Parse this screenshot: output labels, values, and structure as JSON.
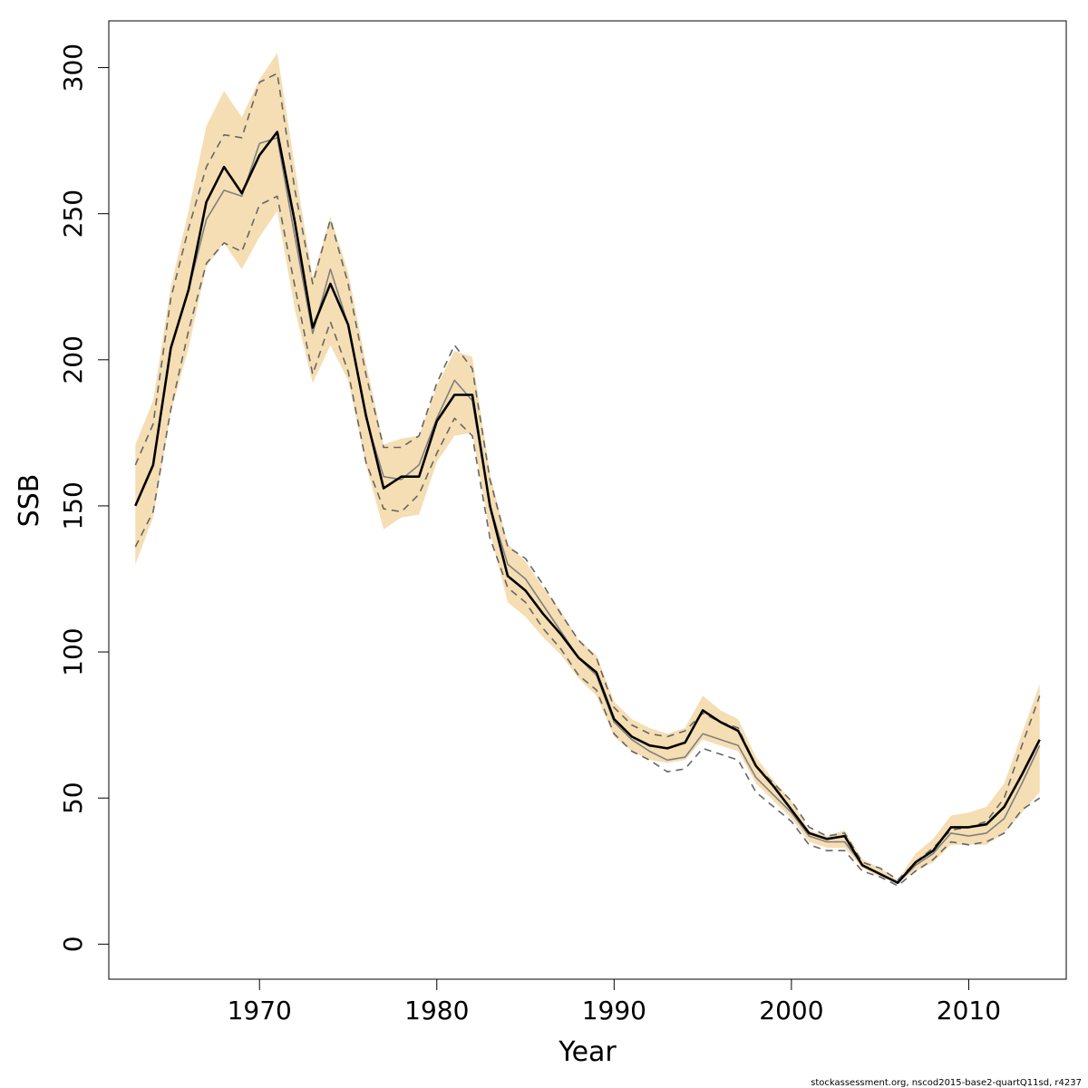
{
  "chart_data": {
    "type": "line",
    "title": "",
    "xlabel": "Year",
    "ylabel": "SSB",
    "xlim": [
      1961.5,
      2015.5
    ],
    "ylim": [
      -12,
      316
    ],
    "x_ticks": [
      1970,
      1980,
      1990,
      2000,
      2010
    ],
    "y_ticks": [
      0,
      50,
      100,
      150,
      200,
      250,
      300
    ],
    "grid": false,
    "legend": "none",
    "footer": "stockassessment.org, nscod2015-base2-quartQ11sd, r4237",
    "colors": {
      "band": "#f5deb3",
      "estimate": "#000000",
      "alt_estimate": "#808080",
      "alt_bounds": "#666666"
    },
    "x": [
      1963,
      1964,
      1965,
      1966,
      1967,
      1968,
      1969,
      1970,
      1971,
      1972,
      1973,
      1974,
      1975,
      1976,
      1977,
      1978,
      1979,
      1980,
      1981,
      1982,
      1983,
      1984,
      1985,
      1986,
      1987,
      1988,
      1989,
      1990,
      1991,
      1992,
      1993,
      1994,
      1995,
      1996,
      1997,
      1998,
      1999,
      2000,
      2001,
      2002,
      2003,
      2004,
      2005,
      2006,
      2007,
      2008,
      2009,
      2010,
      2011,
      2012,
      2013,
      2014
    ],
    "band": {
      "lower": [
        130,
        146,
        182,
        204,
        232,
        240,
        231,
        242,
        251,
        217,
        192,
        205,
        193,
        164,
        142,
        146,
        147,
        165,
        174,
        175,
        141,
        117,
        112,
        105,
        99,
        91,
        85,
        71,
        66,
        63,
        62,
        63,
        70,
        68,
        66,
        55,
        49,
        43,
        35,
        33,
        33,
        26,
        23,
        21,
        25,
        28,
        34,
        34,
        34,
        38,
        45,
        52
      ],
      "upper": [
        171,
        186,
        225,
        251,
        280,
        292,
        283,
        296,
        305,
        266,
        228,
        249,
        230,
        199,
        171,
        173,
        174,
        191,
        203,
        201,
        161,
        137,
        131,
        122,
        114,
        104,
        99,
        83,
        77,
        74,
        72,
        74,
        85,
        80,
        77,
        64,
        56,
        49,
        39,
        37,
        39,
        29,
        26,
        22,
        31,
        36,
        44,
        45,
        47,
        55,
        72,
        89
      ]
    },
    "series": [
      {
        "values": [
          150,
          164,
          204,
          224,
          254,
          266,
          257,
          270,
          278,
          247,
          211,
          226,
          212,
          181,
          156,
          160,
          160,
          179,
          188,
          188,
          150,
          126,
          121,
          113,
          106,
          98,
          93,
          77,
          71,
          68,
          67,
          69,
          80,
          76,
          73,
          61,
          54,
          46,
          38,
          36,
          37,
          27,
          24,
          21,
          28,
          32,
          40,
          40,
          41,
          47,
          58,
          70
        ]
      },
      {
        "values": [
          150,
          164,
          204,
          224,
          248,
          258,
          256,
          274,
          276,
          242,
          209,
          231,
          212,
          180,
          160,
          159,
          164,
          180,
          193,
          186,
          150,
          130,
          125,
          116,
          107,
          98,
          92,
          76,
          70,
          66,
          63,
          64,
          72,
          70,
          68,
          57,
          51,
          45,
          37,
          35,
          35,
          27,
          24,
          21,
          27,
          31,
          38,
          37,
          38,
          43,
          55,
          68
        ]
      },
      {
        "values": [
          136,
          148,
          183,
          210,
          233,
          240,
          237,
          253,
          256,
          225,
          195,
          213,
          196,
          165,
          149,
          148,
          154,
          168,
          180,
          174,
          139,
          122,
          117,
          108,
          101,
          92,
          87,
          72,
          66,
          63,
          59,
          60,
          67,
          65,
          63,
          52,
          47,
          42,
          34,
          32,
          32,
          25,
          23,
          20,
          25,
          29,
          35,
          34,
          35,
          38,
          46,
          50
        ]
      },
      {
        "values": [
          164,
          178,
          221,
          245,
          266,
          277,
          276,
          295,
          298,
          258,
          226,
          248,
          226,
          195,
          170,
          170,
          174,
          192,
          205,
          197,
          159,
          136,
          132,
          123,
          113,
          104,
          98,
          81,
          75,
          72,
          71,
          73,
          79,
          76,
          74,
          61,
          55,
          49,
          40,
          37,
          38,
          28,
          26,
          22,
          28,
          33,
          39,
          40,
          42,
          50,
          68,
          85
        ]
      }
    ]
  }
}
